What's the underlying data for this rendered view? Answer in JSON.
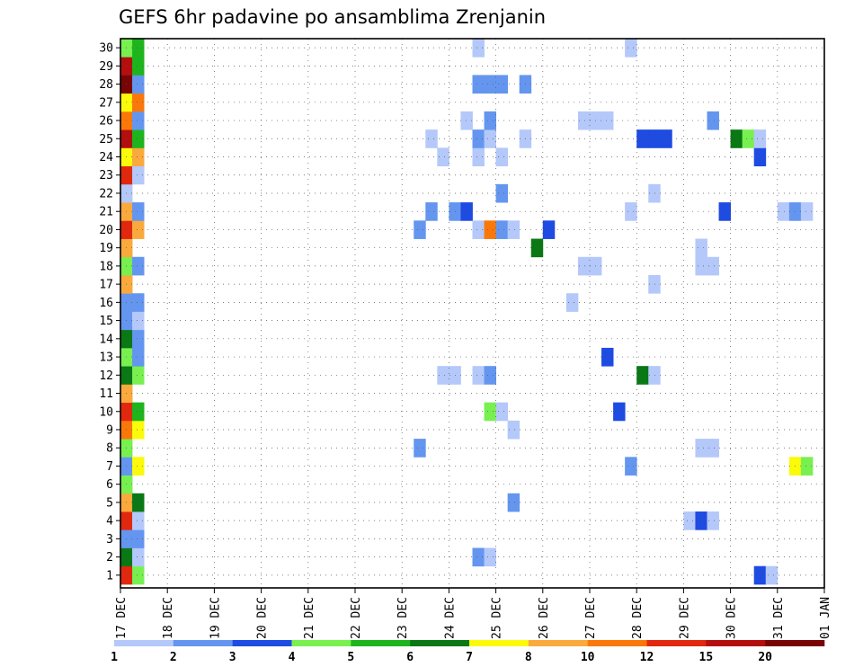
{
  "chart_data": {
    "type": "heatmap",
    "title": "GEFS 6hr padavine po ansamblima Zrenjanin",
    "x_tick_labels": [
      "17 DEC",
      "18 DEC",
      "19 DEC",
      "20 DEC",
      "21 DEC",
      "22 DEC",
      "23 DEC",
      "24 DEC",
      "25 DEC",
      "26 DEC",
      "27 DEC",
      "28 DEC",
      "29 DEC",
      "30 DEC",
      "31 DEC",
      "01 JAN"
    ],
    "y_tick_labels": [
      "1",
      "2",
      "3",
      "4",
      "5",
      "6",
      "7",
      "8",
      "9",
      "10",
      "11",
      "12",
      "13",
      "14",
      "15",
      "16",
      "17",
      "18",
      "19",
      "20",
      "21",
      "22",
      "23",
      "24",
      "25",
      "26",
      "27",
      "28",
      "29",
      "30"
    ],
    "xlabel": "",
    "ylabel": "",
    "x_range_days": [
      0,
      15
    ],
    "step_hours": 6,
    "members": 30,
    "grid": true,
    "colorbar": {
      "placement": "bottom",
      "labels": [
        "1",
        "2",
        "3",
        "4",
        "5",
        "6",
        "7",
        "8",
        "10",
        "12",
        "15",
        "20"
      ],
      "colors": [
        "#b4c8fa",
        "#6496f0",
        "#1e4be1",
        "#78f050",
        "#1eb41e",
        "#0a7814",
        "#fafa0a",
        "#faaa3c",
        "#fa780a",
        "#e1280f",
        "#b40f0f",
        "#780505"
      ]
    },
    "cells": [
      [
        0,
        1,
        "#e1280f"
      ],
      [
        0,
        2,
        "#0a7814"
      ],
      [
        0,
        3,
        "#6496f0"
      ],
      [
        0,
        4,
        "#e1280f"
      ],
      [
        0,
        5,
        "#faaa3c"
      ],
      [
        0,
        6,
        "#78f050"
      ],
      [
        0,
        7,
        "#6496f0"
      ],
      [
        0,
        8,
        "#78f050"
      ],
      [
        0,
        9,
        "#fa780a"
      ],
      [
        0,
        10,
        "#e1280f"
      ],
      [
        0,
        11,
        "#faaa3c"
      ],
      [
        0,
        12,
        "#0a7814"
      ],
      [
        0,
        13,
        "#78f050"
      ],
      [
        0,
        14,
        "#0a7814"
      ],
      [
        0,
        15,
        "#6496f0"
      ],
      [
        0,
        16,
        "#6496f0"
      ],
      [
        0,
        17,
        "#faaa3c"
      ],
      [
        0,
        18,
        "#78f050"
      ],
      [
        0,
        19,
        "#faaa3c"
      ],
      [
        0,
        20,
        "#e1280f"
      ],
      [
        0,
        21,
        "#faaa3c"
      ],
      [
        0,
        22,
        "#b4c8fa"
      ],
      [
        0,
        23,
        "#e1280f"
      ],
      [
        0,
        24,
        "#fafa0a"
      ],
      [
        0,
        25,
        "#b40f0f"
      ],
      [
        0,
        26,
        "#fa780a"
      ],
      [
        0,
        27,
        "#fafa0a"
      ],
      [
        0,
        28,
        "#780505"
      ],
      [
        0,
        29,
        "#b40f0f"
      ],
      [
        0,
        30,
        "#78f050"
      ],
      [
        1,
        1,
        "#78f050"
      ],
      [
        1,
        2,
        "#b4c8fa"
      ],
      [
        1,
        3,
        "#6496f0"
      ],
      [
        1,
        4,
        "#b4c8fa"
      ],
      [
        1,
        5,
        "#0a7814"
      ],
      [
        1,
        7,
        "#fafa0a"
      ],
      [
        1,
        9,
        "#fafa0a"
      ],
      [
        1,
        10,
        "#1eb41e"
      ],
      [
        1,
        12,
        "#78f050"
      ],
      [
        1,
        13,
        "#6496f0"
      ],
      [
        1,
        14,
        "#6496f0"
      ],
      [
        1,
        15,
        "#b4c8fa"
      ],
      [
        1,
        16,
        "#6496f0"
      ],
      [
        1,
        18,
        "#6496f0"
      ],
      [
        1,
        20,
        "#faaa3c"
      ],
      [
        1,
        21,
        "#6496f0"
      ],
      [
        1,
        23,
        "#b4c8fa"
      ],
      [
        1,
        24,
        "#faaa3c"
      ],
      [
        1,
        25,
        "#1eb41e"
      ],
      [
        1,
        26,
        "#6496f0"
      ],
      [
        1,
        27,
        "#fa780a"
      ],
      [
        1,
        28,
        "#6496f0"
      ],
      [
        1,
        29,
        "#1eb41e"
      ],
      [
        1,
        30,
        "#1eb41e"
      ],
      [
        25,
        20,
        "#6496f0"
      ],
      [
        25,
        8,
        "#6496f0"
      ],
      [
        26,
        21,
        "#6496f0"
      ],
      [
        26,
        25,
        "#b4c8fa"
      ],
      [
        27,
        12,
        "#b4c8fa"
      ],
      [
        27,
        24,
        "#b4c8fa"
      ],
      [
        28,
        12,
        "#b4c8fa"
      ],
      [
        28,
        21,
        "#6496f0"
      ],
      [
        29,
        21,
        "#1e4be1"
      ],
      [
        29,
        26,
        "#b4c8fa"
      ],
      [
        30,
        2,
        "#6496f0"
      ],
      [
        30,
        12,
        "#b4c8fa"
      ],
      [
        30,
        20,
        "#b4c8fa"
      ],
      [
        30,
        24,
        "#b4c8fa"
      ],
      [
        30,
        25,
        "#6496f0"
      ],
      [
        30,
        28,
        "#6496f0"
      ],
      [
        30,
        30,
        "#b4c8fa"
      ],
      [
        31,
        2,
        "#b4c8fa"
      ],
      [
        31,
        10,
        "#78f050"
      ],
      [
        31,
        12,
        "#6496f0"
      ],
      [
        31,
        20,
        "#fa780a"
      ],
      [
        31,
        25,
        "#b4c8fa"
      ],
      [
        31,
        26,
        "#6496f0"
      ],
      [
        31,
        28,
        "#6496f0"
      ],
      [
        32,
        10,
        "#b4c8fa"
      ],
      [
        32,
        20,
        "#6496f0"
      ],
      [
        32,
        22,
        "#6496f0"
      ],
      [
        32,
        24,
        "#b4c8fa"
      ],
      [
        32,
        28,
        "#6496f0"
      ],
      [
        33,
        5,
        "#6496f0"
      ],
      [
        33,
        9,
        "#b4c8fa"
      ],
      [
        33,
        20,
        "#b4c8fa"
      ],
      [
        34,
        25,
        "#b4c8fa"
      ],
      [
        34,
        28,
        "#6496f0"
      ],
      [
        35,
        19,
        "#0a7814"
      ],
      [
        36,
        20,
        "#1e4be1"
      ],
      [
        38,
        16,
        "#b4c8fa"
      ],
      [
        39,
        18,
        "#b4c8fa"
      ],
      [
        39,
        26,
        "#b4c8fa"
      ],
      [
        40,
        18,
        "#b4c8fa"
      ],
      [
        40,
        26,
        "#b4c8fa"
      ],
      [
        41,
        13,
        "#1e4be1"
      ],
      [
        41,
        26,
        "#b4c8fa"
      ],
      [
        42,
        10,
        "#1e4be1"
      ],
      [
        43,
        7,
        "#6496f0"
      ],
      [
        43,
        21,
        "#b4c8fa"
      ],
      [
        43,
        30,
        "#b4c8fa"
      ],
      [
        44,
        12,
        "#0a7814"
      ],
      [
        44,
        25,
        "#1e4be1"
      ],
      [
        45,
        12,
        "#b4c8fa"
      ],
      [
        45,
        17,
        "#b4c8fa"
      ],
      [
        45,
        22,
        "#b4c8fa"
      ],
      [
        45,
        25,
        "#1e4be1"
      ],
      [
        46,
        25,
        "#1e4be1"
      ],
      [
        48,
        4,
        "#b4c8fa"
      ],
      [
        49,
        4,
        "#1e4be1"
      ],
      [
        49,
        8,
        "#b4c8fa"
      ],
      [
        49,
        18,
        "#b4c8fa"
      ],
      [
        49,
        19,
        "#b4c8fa"
      ],
      [
        50,
        4,
        "#b4c8fa"
      ],
      [
        50,
        8,
        "#b4c8fa"
      ],
      [
        50,
        18,
        "#b4c8fa"
      ],
      [
        50,
        26,
        "#6496f0"
      ],
      [
        51,
        21,
        "#1e4be1"
      ],
      [
        52,
        25,
        "#0a7814"
      ],
      [
        53,
        25,
        "#78f050"
      ],
      [
        54,
        1,
        "#1e4be1"
      ],
      [
        54,
        24,
        "#1e4be1"
      ],
      [
        54,
        25,
        "#b4c8fa"
      ],
      [
        55,
        1,
        "#b4c8fa"
      ],
      [
        56,
        21,
        "#b4c8fa"
      ],
      [
        57,
        7,
        "#fafa0a"
      ],
      [
        57,
        21,
        "#6496f0"
      ],
      [
        58,
        7,
        "#78f050"
      ],
      [
        58,
        21,
        "#b4c8fa"
      ]
    ]
  }
}
